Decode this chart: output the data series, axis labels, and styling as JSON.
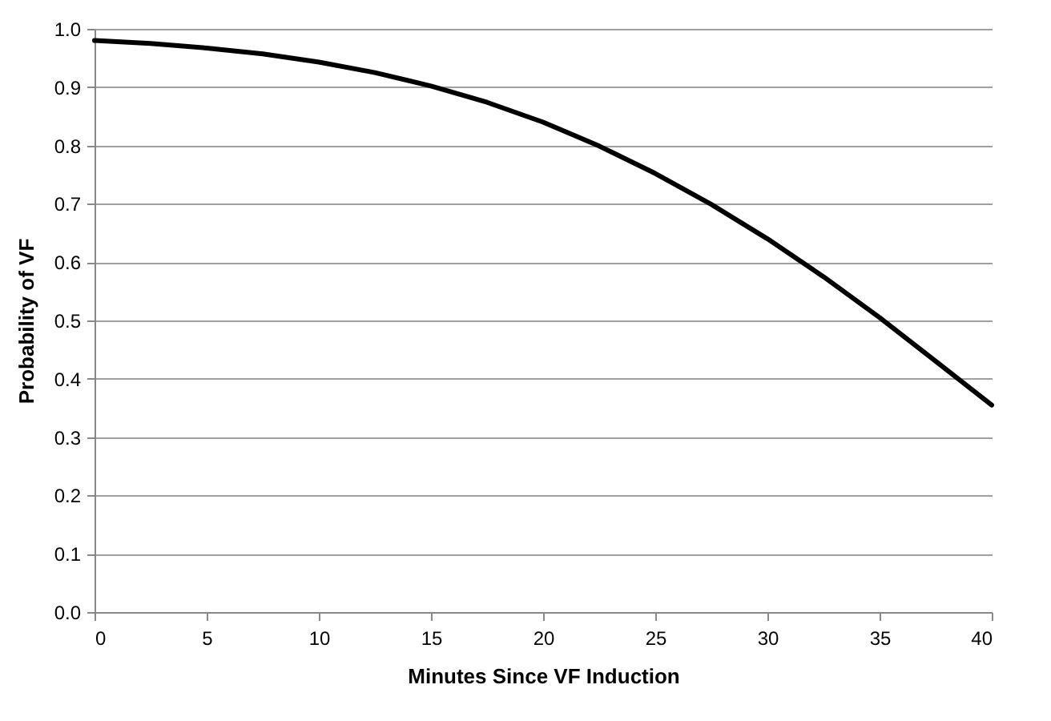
{
  "chart_data": {
    "type": "line",
    "xlabel": "Minutes Since VF Induction",
    "ylabel": "Probability of VF",
    "x": [
      0,
      2.5,
      5,
      7.5,
      10,
      12.5,
      15,
      17.5,
      20,
      22.5,
      25,
      27.5,
      30,
      32.5,
      35,
      37.5,
      40
    ],
    "series": [
      {
        "color": "#000000",
        "values": [
          0.98,
          0.975,
          0.967,
          0.957,
          0.943,
          0.925,
          0.902,
          0.874,
          0.84,
          0.799,
          0.752,
          0.699,
          0.64,
          0.575,
          0.505,
          0.43,
          0.355
        ]
      }
    ],
    "xlim": [
      0,
      40
    ],
    "xticks": [
      0,
      5,
      10,
      15,
      20,
      25,
      30,
      35,
      40
    ],
    "ylim": [
      0,
      1
    ],
    "yticks": [
      {
        "value": 0,
        "label": "0.0"
      },
      {
        "value": 0.1,
        "label": "0.1"
      },
      {
        "value": 0.2,
        "label": "0.2"
      },
      {
        "value": 0.3,
        "label": "0.3"
      },
      {
        "value": 0.4,
        "label": "0.4"
      },
      {
        "value": 0.5,
        "label": "0.5"
      },
      {
        "value": 0.6,
        "label": "0.6"
      },
      {
        "value": 0.7,
        "label": "0.7"
      },
      {
        "value": 0.8,
        "label": "0.8"
      },
      {
        "value": 0.9,
        "label": "0.9"
      },
      {
        "value": 1,
        "label": "1.0"
      }
    ],
    "grid": "y",
    "marker": "none",
    "line_style": "solid"
  }
}
